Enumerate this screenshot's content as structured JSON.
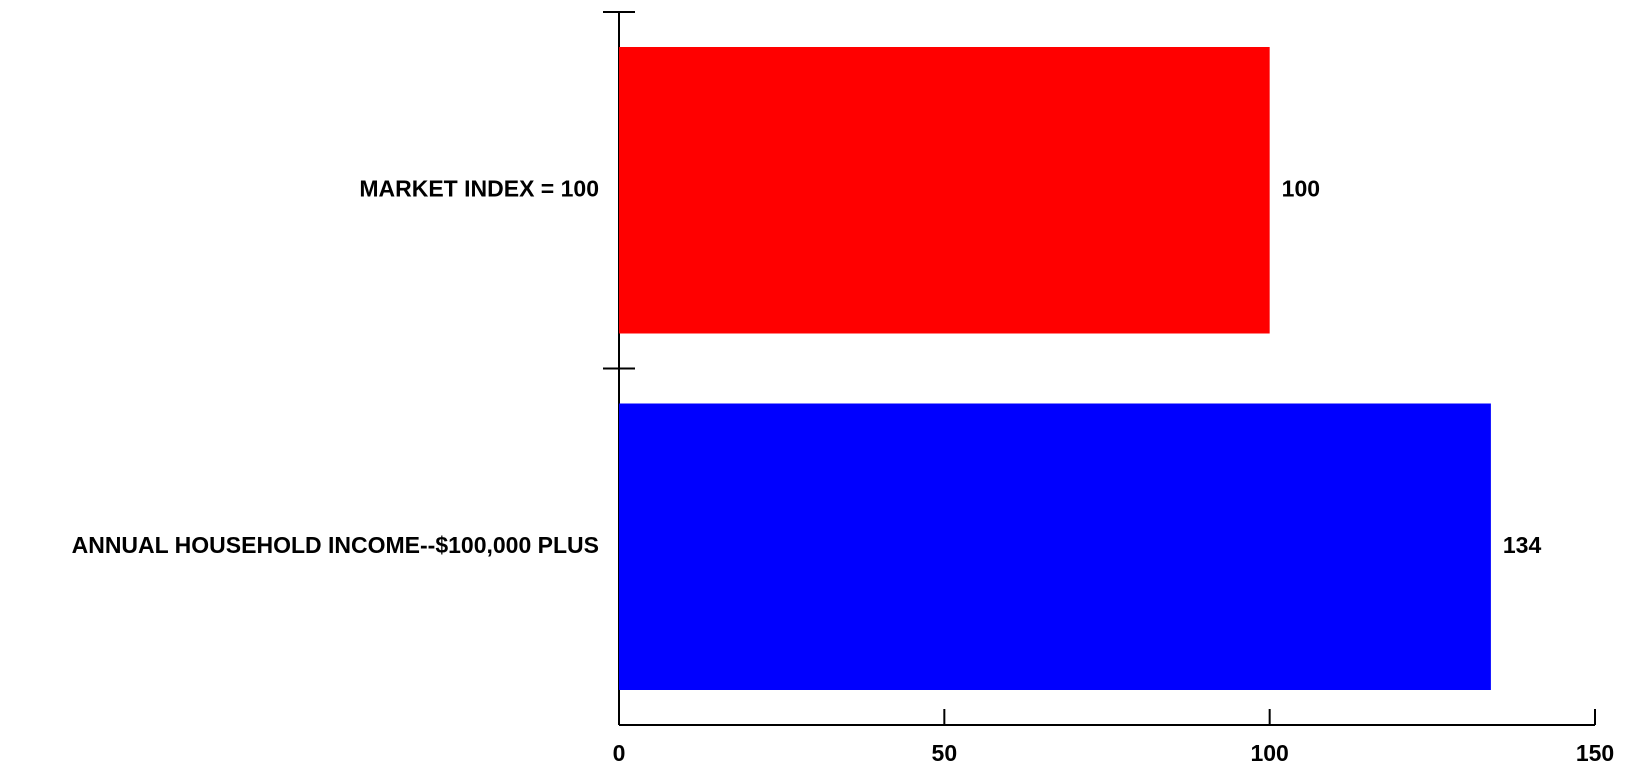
{
  "chart_data": {
    "type": "bar",
    "orientation": "horizontal",
    "title": "",
    "xlabel": "",
    "ylabel": "",
    "xlim": [
      0,
      150
    ],
    "xticks": [
      0,
      50,
      100,
      150
    ],
    "grid": false,
    "categories": [
      "MARKET INDEX = 100",
      "ANNUAL HOUSEHOLD INCOME--$100,000 PLUS"
    ],
    "values": [
      100,
      134
    ],
    "value_labels": [
      "100",
      "134"
    ],
    "colors": [
      "#ff0000",
      "#0000ff"
    ]
  }
}
